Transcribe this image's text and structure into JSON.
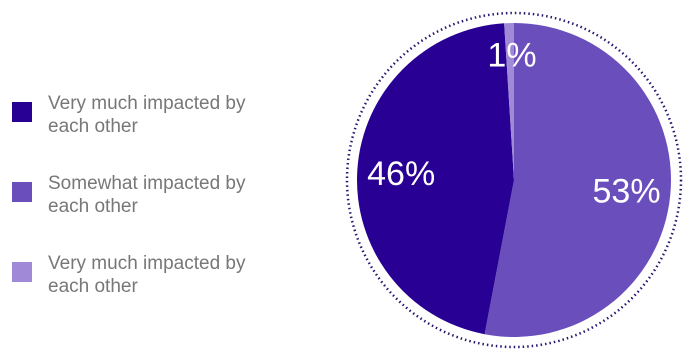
{
  "chart_data": {
    "type": "pie",
    "title": "",
    "legend_position": "left",
    "slices": [
      {
        "label": "Very much impacted by each other",
        "value": 46,
        "display": "46%",
        "color": "#280093"
      },
      {
        "label": "Somewhat impacted by each other",
        "value": 53,
        "display": "53%",
        "color": "#6a4ebc"
      },
      {
        "label": "Very much impacted by each other",
        "value": 1,
        "display": "1%",
        "color": "#a08ad8"
      }
    ],
    "outline_color": "#2a1670"
  }
}
